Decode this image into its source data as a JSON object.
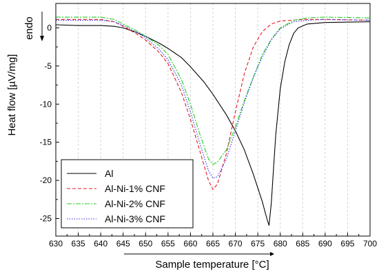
{
  "chart_data": {
    "type": "line",
    "xlabel": "Sample temperature [°C]",
    "ylabel": "Heat flow [µV/mg]",
    "annotation": "endo",
    "xlim": [
      630,
      700
    ],
    "ylim": [
      -27.3,
      3.2
    ],
    "xticks": [
      630,
      635,
      640,
      645,
      650,
      655,
      660,
      665,
      670,
      675,
      680,
      685,
      690,
      695,
      700
    ],
    "yticks": [
      0,
      -5,
      -10,
      -15,
      -20,
      -25
    ],
    "grid": "vertical dashed",
    "legend_position": "bottom-left",
    "series": [
      {
        "name": "Al",
        "color": "#000000",
        "dash": "solid",
        "points": [
          [
            630,
            0.4
          ],
          [
            635,
            0.3
          ],
          [
            640,
            0.3
          ],
          [
            643,
            0.2
          ],
          [
            645,
            0
          ],
          [
            648,
            -0.6
          ],
          [
            650,
            -1.1
          ],
          [
            653,
            -2
          ],
          [
            655,
            -2.7
          ],
          [
            658,
            -3.9
          ],
          [
            660,
            -5.1
          ],
          [
            663,
            -7.1
          ],
          [
            665,
            -8.7
          ],
          [
            668,
            -11.4
          ],
          [
            670,
            -13.5
          ],
          [
            672,
            -16
          ],
          [
            674,
            -19.2
          ],
          [
            676,
            -22.8
          ],
          [
            677,
            -25
          ],
          [
            677.5,
            -25.9
          ],
          [
            678,
            -23
          ],
          [
            678.5,
            -18.5
          ],
          [
            679,
            -14
          ],
          [
            680,
            -8
          ],
          [
            681,
            -4.5
          ],
          [
            682,
            -2.2
          ],
          [
            683,
            -0.7
          ],
          [
            684,
            0
          ],
          [
            686,
            0.5
          ],
          [
            690,
            0.7
          ],
          [
            700,
            0.8
          ]
        ]
      },
      {
        "name": "Al-Ni-1% CNF",
        "color": "#e8161c",
        "dash": "dashed",
        "points": [
          [
            630,
            1.1
          ],
          [
            635,
            1.1
          ],
          [
            640,
            1.1
          ],
          [
            643,
            0.8
          ],
          [
            645,
            0.2
          ],
          [
            648,
            -0.8
          ],
          [
            650,
            -1.6
          ],
          [
            653,
            -3.2
          ],
          [
            655,
            -4.7
          ],
          [
            658,
            -8.5
          ],
          [
            660,
            -12
          ],
          [
            662,
            -16
          ],
          [
            664,
            -20
          ],
          [
            665,
            -21.2
          ],
          [
            666,
            -20.5
          ],
          [
            668,
            -16.5
          ],
          [
            670,
            -11
          ],
          [
            672,
            -6
          ],
          [
            674,
            -2.5
          ],
          [
            676,
            -0.5
          ],
          [
            678,
            0.5
          ],
          [
            680,
            0.9
          ],
          [
            685,
            1.1
          ],
          [
            690,
            1.1
          ],
          [
            700,
            1
          ]
        ]
      },
      {
        "name": "Al-Ni-2% CNF",
        "color": "#22cc22",
        "dash": "dashdot",
        "points": [
          [
            630,
            1.4
          ],
          [
            635,
            1.4
          ],
          [
            640,
            1.4
          ],
          [
            643,
            1.1
          ],
          [
            645,
            0.5
          ],
          [
            648,
            -0.4
          ],
          [
            650,
            -1.1
          ],
          [
            653,
            -2.3
          ],
          [
            655,
            -3.5
          ],
          [
            658,
            -6.8
          ],
          [
            660,
            -10
          ],
          [
            662,
            -13.8
          ],
          [
            664,
            -17.2
          ],
          [
            665,
            -17.9
          ],
          [
            666,
            -17.6
          ],
          [
            668,
            -16
          ],
          [
            670,
            -13
          ],
          [
            672,
            -9.5
          ],
          [
            674,
            -6.5
          ],
          [
            676,
            -3.5
          ],
          [
            678,
            -1.5
          ],
          [
            680,
            0
          ],
          [
            683,
            1
          ],
          [
            686,
            1.3
          ],
          [
            690,
            1.4
          ],
          [
            700,
            1.3
          ]
        ]
      },
      {
        "name": "Al-Ni-3% CNF",
        "color": "#2a2aee",
        "dash": "dotted",
        "points": [
          [
            630,
            1
          ],
          [
            635,
            1
          ],
          [
            640,
            1
          ],
          [
            643,
            0.8
          ],
          [
            645,
            0.3
          ],
          [
            648,
            -0.6
          ],
          [
            650,
            -1.3
          ],
          [
            653,
            -2.8
          ],
          [
            655,
            -4.2
          ],
          [
            658,
            -7.5
          ],
          [
            660,
            -11
          ],
          [
            662,
            -15
          ],
          [
            664,
            -18.7
          ],
          [
            665,
            -19.7
          ],
          [
            666,
            -19.5
          ],
          [
            668,
            -17.2
          ],
          [
            670,
            -13.5
          ],
          [
            672,
            -9.8
          ],
          [
            674,
            -6.5
          ],
          [
            676,
            -3.8
          ],
          [
            678,
            -1.6
          ],
          [
            680,
            -0.1
          ],
          [
            683,
            0.8
          ],
          [
            686,
            1
          ],
          [
            690,
            1.1
          ],
          [
            700,
            1
          ]
        ]
      }
    ]
  }
}
